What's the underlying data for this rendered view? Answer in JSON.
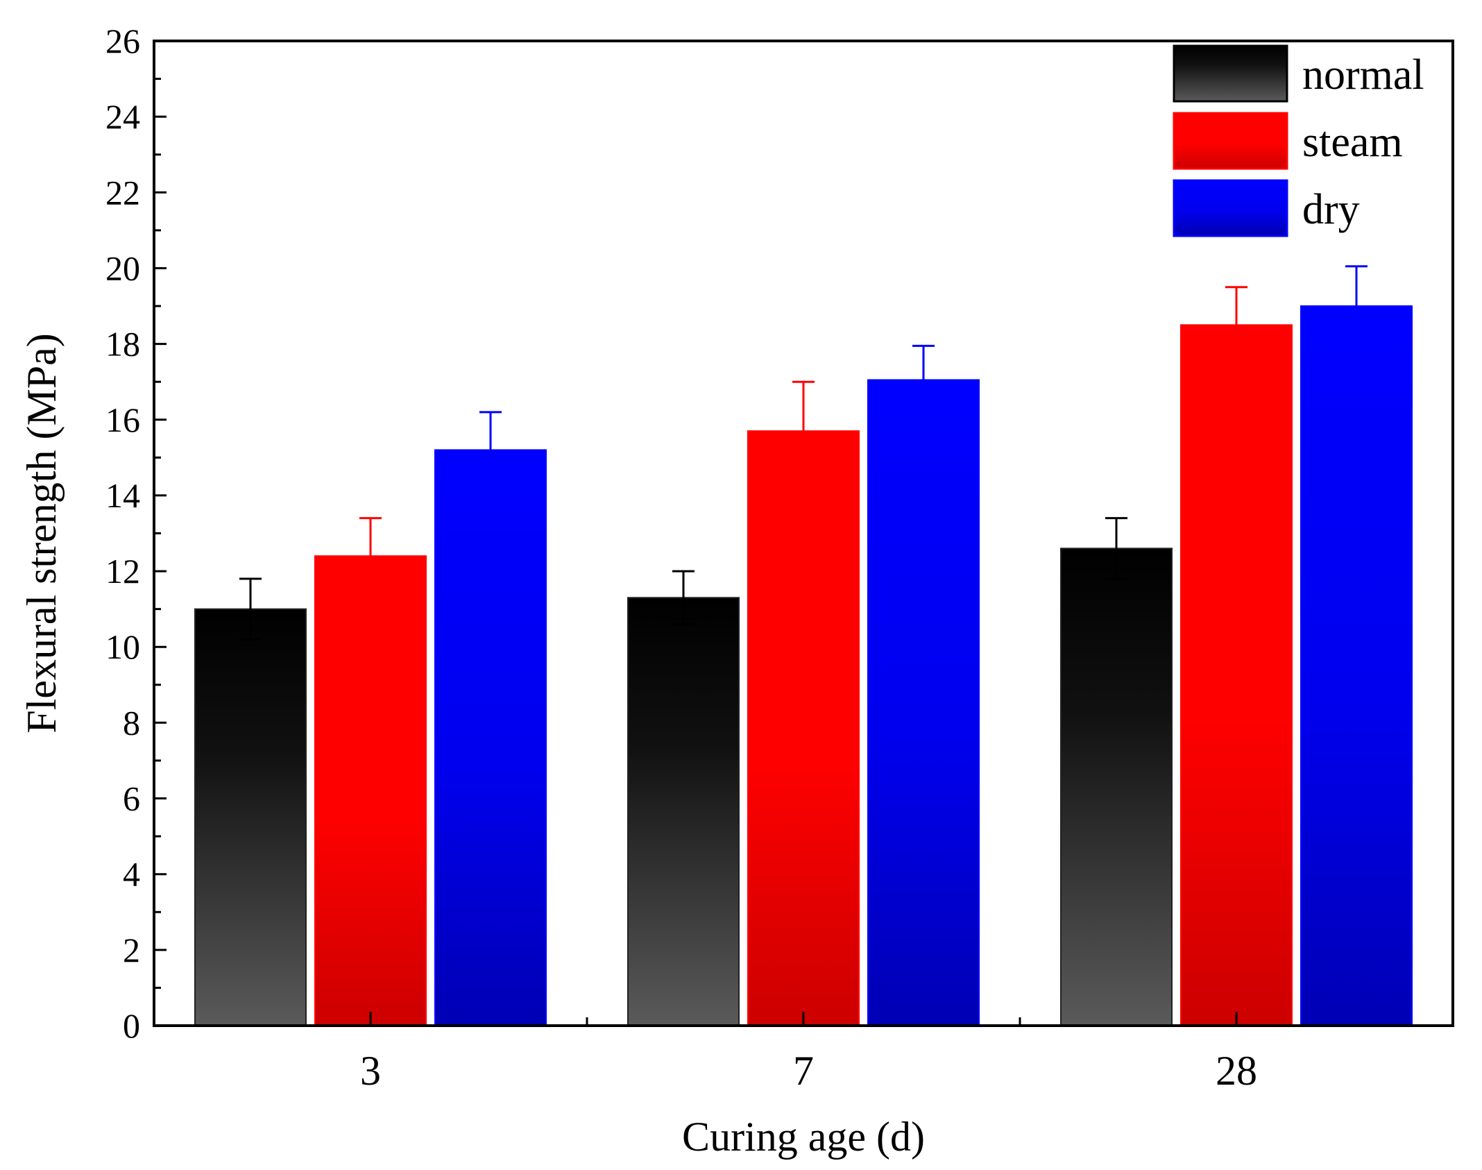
{
  "chart_data": {
    "type": "bar",
    "title": "",
    "xlabel": "Curing age (d)",
    "ylabel": "Flexural strength (MPa)",
    "ylim": [
      0,
      26
    ],
    "yticks": [
      0,
      2,
      4,
      6,
      8,
      10,
      12,
      14,
      16,
      18,
      20,
      22,
      24,
      26
    ],
    "categories": [
      "3",
      "7",
      "28"
    ],
    "legend_position": "top-right",
    "grid": false,
    "series": [
      {
        "name": "normal",
        "color": "#222222",
        "values": [
          11.0,
          11.3,
          12.6
        ],
        "errors": [
          0.8,
          0.7,
          0.8
        ]
      },
      {
        "name": "steam",
        "color": "#ff0000",
        "values": [
          12.4,
          15.7,
          18.5
        ],
        "errors": [
          1.0,
          1.3,
          1.0
        ]
      },
      {
        "name": "dry",
        "color": "#0000ff",
        "values": [
          15.2,
          17.05,
          19.0
        ],
        "errors": [
          1.0,
          0.9,
          1.05
        ]
      }
    ]
  }
}
